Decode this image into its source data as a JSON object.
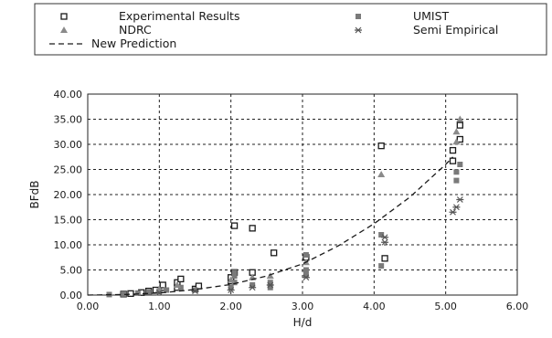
{
  "chart_data": {
    "type": "scatter",
    "xlabel": "H/d",
    "ylabel": "BFdB",
    "xlim": [
      0,
      6
    ],
    "ylim": [
      0,
      40
    ],
    "grid": true,
    "legend_position": "top",
    "x_ticks": [
      "0.00",
      "1.00",
      "2.00",
      "3.00",
      "4.00",
      "5.00",
      "6.00"
    ],
    "y_ticks": [
      "0.00",
      "5.00",
      "10.00",
      "15.00",
      "20.00",
      "25.00",
      "30.00",
      "35.00",
      "40.00"
    ],
    "series": [
      {
        "name": "Experimental Results",
        "marker": "open-square",
        "color": "#1a1a1a",
        "points": [
          [
            0.5,
            0.2
          ],
          [
            0.6,
            0.3
          ],
          [
            0.75,
            0.5
          ],
          [
            0.85,
            0.8
          ],
          [
            0.95,
            1.0
          ],
          [
            1.05,
            1.5
          ],
          [
            1.05,
            2.0
          ],
          [
            1.25,
            1.5
          ],
          [
            1.25,
            2.5
          ],
          [
            1.3,
            3.2
          ],
          [
            1.5,
            1.2
          ],
          [
            1.55,
            1.8
          ],
          [
            2.0,
            2.8
          ],
          [
            2.0,
            3.5
          ],
          [
            2.05,
            4.5
          ],
          [
            2.05,
            13.8
          ],
          [
            2.3,
            4.5
          ],
          [
            2.3,
            13.3
          ],
          [
            2.6,
            8.4
          ],
          [
            3.05,
            7.5
          ],
          [
            4.1,
            29.7
          ],
          [
            4.15,
            7.3
          ],
          [
            5.1,
            26.7
          ],
          [
            5.1,
            28.8
          ],
          [
            5.2,
            31.0
          ],
          [
            5.2,
            33.8
          ]
        ]
      },
      {
        "name": "UMIST",
        "marker": "filled-square",
        "color": "#7a7a7a",
        "points": [
          [
            0.3,
            0.1
          ],
          [
            0.5,
            0.2
          ],
          [
            0.7,
            0.4
          ],
          [
            0.85,
            0.6
          ],
          [
            1.0,
            0.8
          ],
          [
            1.1,
            1.0
          ],
          [
            1.3,
            1.5
          ],
          [
            1.5,
            1.0
          ],
          [
            2.0,
            1.5
          ],
          [
            2.05,
            2.5
          ],
          [
            2.05,
            3.8
          ],
          [
            2.05,
            4.5
          ],
          [
            2.3,
            2.0
          ],
          [
            2.55,
            1.5
          ],
          [
            2.55,
            2.5
          ],
          [
            3.05,
            4.0
          ],
          [
            3.05,
            5.0
          ],
          [
            3.05,
            8.0
          ],
          [
            4.1,
            5.8
          ],
          [
            4.1,
            12.0
          ],
          [
            5.15,
            22.8
          ],
          [
            5.15,
            24.5
          ],
          [
            5.2,
            26.0
          ]
        ]
      },
      {
        "name": "NDRC",
        "marker": "triangle",
        "color": "#8a8a8a",
        "points": [
          [
            1.0,
            1.2
          ],
          [
            1.25,
            2.0
          ],
          [
            2.0,
            3.0
          ],
          [
            2.3,
            3.5
          ],
          [
            2.55,
            3.8
          ],
          [
            3.05,
            6.5
          ],
          [
            4.1,
            24.0
          ],
          [
            5.15,
            30.5
          ],
          [
            5.15,
            32.5
          ],
          [
            5.2,
            35.0
          ]
        ]
      },
      {
        "name": "Semi Empirical",
        "marker": "asterisk",
        "color": "#555555",
        "points": [
          [
            1.0,
            0.5
          ],
          [
            1.5,
            0.8
          ],
          [
            2.0,
            1.0
          ],
          [
            2.3,
            1.5
          ],
          [
            2.55,
            2.0
          ],
          [
            3.05,
            3.5
          ],
          [
            4.15,
            10.5
          ],
          [
            4.15,
            11.5
          ],
          [
            5.1,
            16.5
          ],
          [
            5.15,
            17.5
          ],
          [
            5.2,
            19.0
          ]
        ]
      },
      {
        "name": "New Prediction",
        "marker": "dashed-line",
        "color": "#1a1a1a",
        "points": [
          [
            0.0,
            0.0
          ],
          [
            0.5,
            0.1
          ],
          [
            1.0,
            0.4
          ],
          [
            1.5,
            1.1
          ],
          [
            2.0,
            2.1
          ],
          [
            2.5,
            3.8
          ],
          [
            3.0,
            6.2
          ],
          [
            3.5,
            9.8
          ],
          [
            4.0,
            14.2
          ],
          [
            4.5,
            19.5
          ],
          [
            5.0,
            26.0
          ],
          [
            5.1,
            27.5
          ]
        ]
      }
    ]
  }
}
